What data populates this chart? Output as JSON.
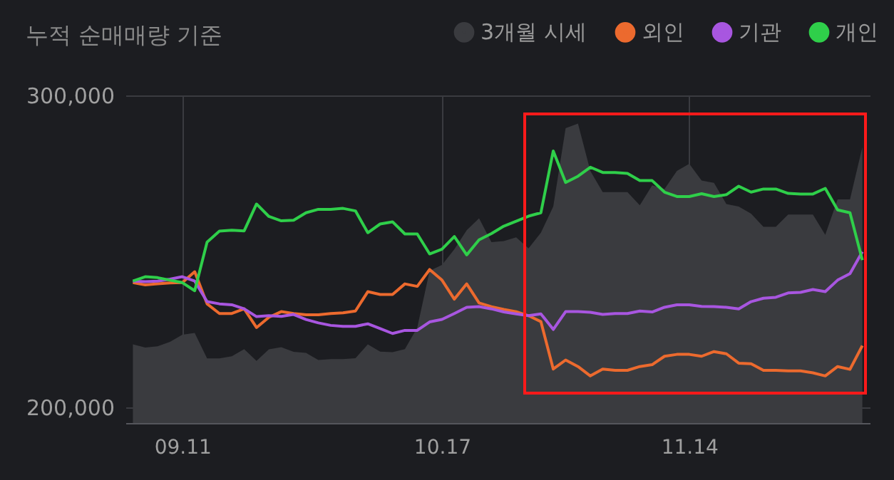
{
  "chart_data": {
    "type": "line",
    "title": "누적 순매매량 기준",
    "categories": [
      null,
      null,
      null,
      null,
      "09.11",
      null,
      null,
      null,
      null,
      null,
      null,
      null,
      null,
      null,
      null,
      null,
      null,
      null,
      null,
      null,
      null,
      null,
      null,
      null,
      null,
      "10.17",
      null,
      null,
      null,
      null,
      null,
      null,
      null,
      null,
      null,
      null,
      null,
      null,
      null,
      null,
      null,
      null,
      null,
      null,
      null,
      "11.14",
      null,
      null,
      null,
      null,
      null,
      null,
      null,
      null,
      null,
      null,
      null,
      null,
      null,
      null
    ],
    "series": [
      {
        "name": "3개월 시세",
        "type": "area",
        "color": "#3a3b3f",
        "values": [
          220200,
          219200,
          219600,
          221000,
          223300,
          223900,
          215700,
          215700,
          216400,
          218700,
          214900,
          218600,
          219300,
          217800,
          217500,
          215200,
          215500,
          215500,
          215800,
          220200,
          217900,
          217700,
          218700,
          225600,
          243800,
          245700,
          250700,
          256800,
          260600,
          253000,
          253300,
          254500,
          251000,
          256000,
          264400,
          289500,
          291000,
          275800,
          269000,
          269000,
          269000,
          264800,
          271200,
          270000,
          275800,
          278100,
          272700,
          272000,
          265200,
          264400,
          262100,
          257900,
          257900,
          261800,
          261800,
          261800,
          255300,
          266700,
          266700,
          283400
        ]
      },
      {
        "name": "외인",
        "color": "#ec6a2e",
        "values": [
          240000,
          239300,
          239600,
          239900,
          240000,
          243500,
          233200,
          230100,
          230100,
          231600,
          225600,
          228900,
          230700,
          230100,
          229700,
          229700,
          230100,
          230300,
          230900,
          237100,
          236200,
          236200,
          239600,
          238800,
          244200,
          240800,
          234700,
          239600,
          233500,
          232300,
          231400,
          230700,
          229400,
          227500,
          212300,
          215200,
          213100,
          210100,
          212300,
          211900,
          211900,
          213100,
          213700,
          216400,
          217000,
          217000,
          216400,
          217900,
          217200,
          214200,
          214000,
          211900,
          211900,
          211700,
          211700,
          211100,
          210100,
          213100,
          212200,
          219800
        ]
      },
      {
        "name": "기관",
        "color": "#a856e0",
        "values": [
          240500,
          240300,
          240500,
          241100,
          241900,
          240500,
          233900,
          233200,
          232900,
          231600,
          229100,
          229400,
          229200,
          229800,
          228200,
          227100,
          226300,
          226000,
          226000,
          226800,
          225300,
          223700,
          224700,
          224700,
          227400,
          228200,
          230100,
          232100,
          232300,
          231600,
          230600,
          230000,
          229400,
          230000,
          225000,
          230700,
          230700,
          230500,
          229800,
          230100,
          230100,
          230900,
          230600,
          232100,
          232900,
          232900,
          232400,
          232300,
          232100,
          231600,
          233900,
          235000,
          235300,
          236700,
          236900,
          237800,
          237100,
          240800,
          242900,
          249900
        ]
      },
      {
        "name": "개인",
        "color": "#2fcf4a",
        "values": [
          240500,
          241900,
          241600,
          240800,
          240000,
          237400,
          253000,
          256500,
          256800,
          256600,
          265200,
          261200,
          259800,
          260000,
          262400,
          263500,
          263500,
          263800,
          263000,
          256000,
          258800,
          259500,
          255600,
          255600,
          249200,
          250700,
          254800,
          248900,
          253700,
          255700,
          258100,
          259700,
          261300,
          262400,
          282200,
          272100,
          274100,
          277000,
          275300,
          275300,
          275000,
          272700,
          272700,
          269000,
          267600,
          267600,
          268500,
          267600,
          268200,
          270900,
          269000,
          270000,
          270000,
          268600,
          268400,
          268400,
          270200,
          263300,
          262400,
          247200
        ]
      }
    ],
    "ylim": [
      195000,
      300000
    ],
    "yticks": [
      {
        "value": 200000,
        "label": "200,000"
      },
      {
        "value": 300000,
        "label": "300,000"
      }
    ],
    "grid": true,
    "legend": "top right"
  }
}
